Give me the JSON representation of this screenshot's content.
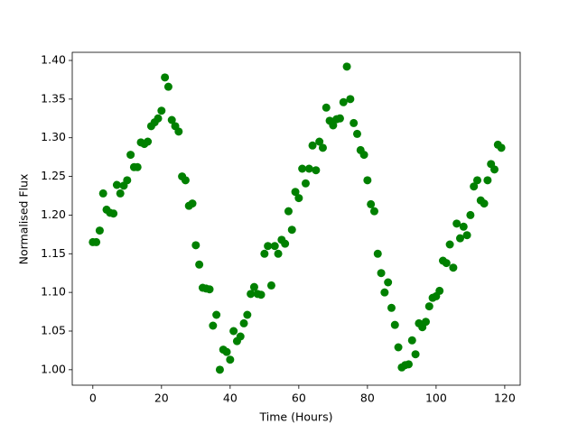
{
  "chart_data": {
    "type": "scatter",
    "xlabel": "Time (Hours)",
    "ylabel": "Normalised Flux",
    "color": "#008000",
    "x": [
      0,
      1,
      2,
      3,
      4,
      5,
      6,
      7,
      8,
      9,
      10,
      11,
      12,
      13,
      14,
      15,
      16,
      17,
      18,
      19,
      20,
      21,
      22,
      23,
      24,
      25,
      26,
      27,
      28,
      29,
      30,
      31,
      32,
      33,
      34,
      35,
      36,
      37,
      38,
      39,
      40,
      41,
      42,
      43,
      44,
      45,
      46,
      47,
      48,
      49,
      50,
      51,
      52,
      53,
      54,
      55,
      56,
      57,
      58,
      59,
      60,
      61,
      62,
      63,
      64,
      65,
      66,
      67,
      68,
      69,
      70,
      71,
      72,
      73,
      74,
      75,
      76,
      77,
      78,
      79,
      80,
      81,
      82,
      83,
      84,
      85,
      86,
      87,
      88,
      89,
      90,
      91,
      92,
      93,
      94,
      95,
      96,
      97,
      98,
      99,
      100,
      101,
      102,
      103,
      104,
      105,
      106,
      107,
      108,
      109,
      110,
      111,
      112,
      113,
      114,
      115,
      116,
      117,
      118,
      119
    ],
    "values": [
      1.165,
      1.165,
      1.18,
      1.228,
      1.207,
      1.203,
      1.202,
      1.239,
      1.228,
      1.238,
      1.245,
      1.278,
      1.262,
      1.262,
      1.294,
      1.292,
      1.295,
      1.315,
      1.32,
      1.325,
      1.335,
      1.378,
      1.366,
      1.323,
      1.315,
      1.308,
      1.25,
      1.245,
      1.212,
      1.215,
      1.161,
      1.136,
      1.106,
      1.105,
      1.104,
      1.057,
      1.071,
      1.0,
      1.026,
      1.023,
      1.013,
      1.05,
      1.037,
      1.043,
      1.06,
      1.071,
      1.098,
      1.107,
      1.098,
      1.097,
      1.15,
      1.16,
      1.109,
      1.16,
      1.15,
      1.168,
      1.163,
      1.205,
      1.181,
      1.23,
      1.222,
      1.26,
      1.241,
      1.26,
      1.29,
      1.258,
      1.295,
      1.287,
      1.339,
      1.322,
      1.316,
      1.324,
      1.325,
      1.346,
      1.392,
      1.35,
      1.319,
      1.305,
      1.284,
      1.278,
      1.245,
      1.214,
      1.205,
      1.15,
      1.125,
      1.1,
      1.113,
      1.08,
      1.058,
      1.029,
      1.003,
      1.006,
      1.007,
      1.038,
      1.02,
      1.06,
      1.055,
      1.062,
      1.082,
      1.093,
      1.095,
      1.102,
      1.141,
      1.138,
      1.162,
      1.132,
      1.189,
      1.17,
      1.185,
      1.174,
      1.2,
      1.237,
      1.245,
      1.219,
      1.215,
      1.245,
      1.266,
      1.259,
      1.291,
      1.287
    ],
    "xlim": [
      -6,
      124.5
    ],
    "ylim": [
      0.98,
      1.4105
    ],
    "xticks": [
      0,
      20,
      40,
      60,
      80,
      100,
      120
    ],
    "yticks": [
      {
        "value": 1.0,
        "label": "1.00"
      },
      {
        "value": 1.05,
        "label": "1.05"
      },
      {
        "value": 1.1,
        "label": "1.10"
      },
      {
        "value": 1.15,
        "label": "1.15"
      },
      {
        "value": 1.2,
        "label": "1.20"
      },
      {
        "value": 1.25,
        "label": "1.25"
      },
      {
        "value": 1.3,
        "label": "1.30"
      },
      {
        "value": 1.35,
        "label": "1.35"
      },
      {
        "value": 1.4,
        "label": "1.40"
      }
    ]
  }
}
